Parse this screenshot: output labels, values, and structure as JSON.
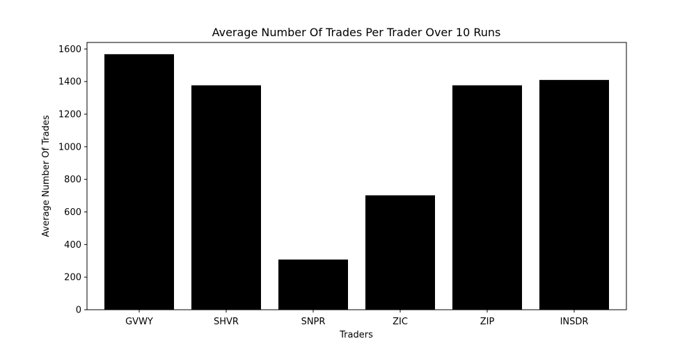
{
  "chart_data": {
    "type": "bar",
    "title": "Average Number Of Trades Per Trader Over 10 Runs",
    "xlabel": "Traders",
    "ylabel": "Average Number Of Trades",
    "categories": [
      "GVWY",
      "SHVR",
      "SNPR",
      "ZIC",
      "ZIP",
      "INSDR"
    ],
    "values": [
      1568,
      1377,
      308,
      702,
      1377,
      1410
    ],
    "ylim": [
      0,
      1640
    ],
    "yticks": [
      0,
      200,
      400,
      600,
      800,
      1000,
      1200,
      1400,
      1600
    ],
    "bar_color": "#000000",
    "grid": false,
    "legend": "none"
  }
}
